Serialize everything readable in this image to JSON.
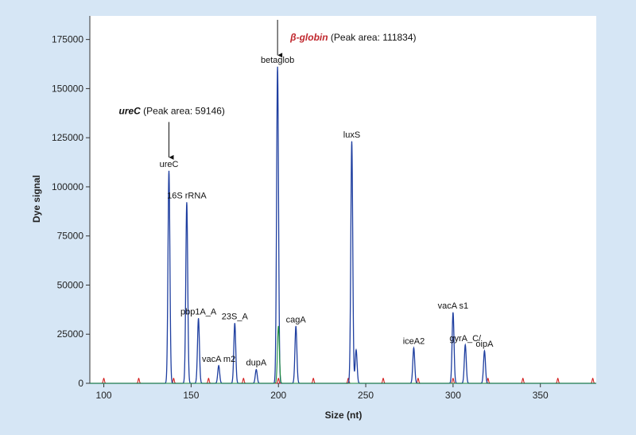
{
  "chart_data": {
    "type": "line",
    "xlabel": "Size (nt)",
    "ylabel": "Dye signal",
    "xlim": [
      92,
      382
    ],
    "ylim": [
      0,
      187000
    ],
    "xticks": [
      "100",
      "150",
      "200",
      "250",
      "300",
      "350"
    ],
    "xtick_values": [
      100,
      150,
      200,
      250,
      300,
      350
    ],
    "yticks": [
      "0",
      "25000",
      "50000",
      "75000",
      "100000",
      "125000",
      "150000",
      "175000"
    ],
    "ytick_values": [
      0,
      25000,
      50000,
      75000,
      100000,
      125000,
      150000,
      175000
    ],
    "grid": false,
    "series": [
      {
        "color": "#1f3fa0",
        "peaks": [
          {
            "x": 137.3,
            "y": 108000,
            "label": "ureC"
          },
          {
            "x": 147.5,
            "y": 92000,
            "label": "16S rRNA"
          },
          {
            "x": 154.2,
            "y": 33000,
            "label": "pbp1A_A"
          },
          {
            "x": 165.8,
            "y": 9000,
            "label": "vacA m2"
          },
          {
            "x": 175.0,
            "y": 30500,
            "label": "23S_A"
          },
          {
            "x": 187.3,
            "y": 7000,
            "label": "dupA"
          },
          {
            "x": 199.5,
            "y": 161000,
            "label": "betaglob"
          },
          {
            "x": 210.0,
            "y": 29000,
            "label": "cagA"
          },
          {
            "x": 242.0,
            "y": 123000,
            "label": "luxS"
          },
          {
            "x": 244.5,
            "y": 17000,
            "label": ""
          },
          {
            "x": 277.5,
            "y": 18000,
            "label": "iceA2"
          },
          {
            "x": 300.0,
            "y": 36000,
            "label": "vacA s1"
          },
          {
            "x": 307.0,
            "y": 19500,
            "label": "gyrA_C/"
          },
          {
            "x": 318.0,
            "y": 16500,
            "label": "oipA"
          }
        ]
      },
      {
        "color": "#1a8a3a",
        "peaks": [
          {
            "x": 200.0,
            "y": 29000,
            "label": ""
          }
        ]
      },
      {
        "color": "#d42020",
        "peaks": [
          {
            "x": 100,
            "y": 2500,
            "label": ""
          },
          {
            "x": 120,
            "y": 2500,
            "label": ""
          },
          {
            "x": 140,
            "y": 2500,
            "label": ""
          },
          {
            "x": 160,
            "y": 2500,
            "label": ""
          },
          {
            "x": 180,
            "y": 2500,
            "label": ""
          },
          {
            "x": 200,
            "y": 2500,
            "label": ""
          },
          {
            "x": 220,
            "y": 2500,
            "label": ""
          },
          {
            "x": 240,
            "y": 2500,
            "label": ""
          },
          {
            "x": 260,
            "y": 2500,
            "label": ""
          },
          {
            "x": 280,
            "y": 2500,
            "label": ""
          },
          {
            "x": 300,
            "y": 2500,
            "label": ""
          },
          {
            "x": 320,
            "y": 2500,
            "label": ""
          },
          {
            "x": 340,
            "y": 2500,
            "label": ""
          },
          {
            "x": 360,
            "y": 2500,
            "label": ""
          },
          {
            "x": 380,
            "y": 2500,
            "label": ""
          }
        ]
      }
    ],
    "annotations": [
      {
        "bold": "ureC",
        "rest": " (Peak area: 59146)",
        "italic": true,
        "bold_color": "#111111",
        "x": 137.3,
        "arrow_top_y": 133000,
        "arrow_bottom_y": 115000
      },
      {
        "bold": "β-globin",
        "rest": " (Peak area: 111834)",
        "italic": true,
        "bold_color": "#c0272d",
        "x": 199.5,
        "arrow_top_y": 185000,
        "arrow_bottom_y": 167000
      }
    ]
  }
}
